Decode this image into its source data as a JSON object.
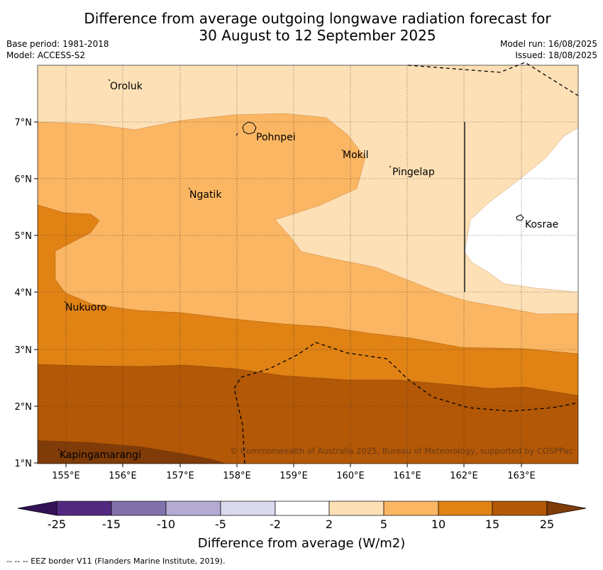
{
  "title_line1": "Difference from average outgoing longwave radiation forecast for",
  "title_line2": "30 August to 12 September 2025",
  "meta_left": [
    "Base period: 1981-2018",
    "Model: ACCESS-S2"
  ],
  "meta_right": [
    "Model run: 16/08/2025",
    "Issued: 18/08/2025"
  ],
  "map": {
    "lon_ticks": [
      "155°E",
      "156°E",
      "157°E",
      "158°E",
      "159°E",
      "160°E",
      "161°E",
      "162°E",
      "163°E"
    ],
    "lat_ticks": [
      "7°N",
      "6°N",
      "5°N",
      "4°N",
      "3°N",
      "2°N",
      "1°N"
    ],
    "places": [
      "Oroluk",
      "Pohnpei",
      "Mokil",
      "Pingelap",
      "Ngatik",
      "Kosrae",
      "Nukuoro",
      "Kapingamarangi"
    ],
    "copyright": "© Commonwealth of Australia 2025, Bureau of Meteorology, supported by COSPPac"
  },
  "colorbar": {
    "ticks": [
      "-25",
      "-15",
      "-10",
      "-5",
      "-2",
      "2",
      "5",
      "10",
      "15",
      "25"
    ],
    "colors": [
      "#331257",
      "#53287f",
      "#8272ac",
      "#b3abd2",
      "#d8d9eb",
      "#ffffff",
      "#fee0b6",
      "#fbb663",
      "#e08214",
      "#b35806",
      "#7f3b08"
    ],
    "label": "Difference from average (W/m2)"
  },
  "footnote": "--  --  -- EEZ border V11 (Flanders Marine Institute, 2019)."
}
